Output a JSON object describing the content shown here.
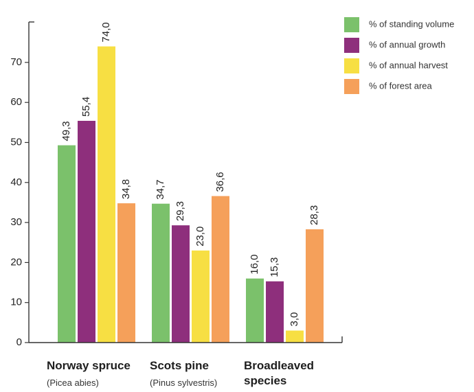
{
  "chart_data": {
    "type": "bar",
    "categories": [
      {
        "name": "Norway spruce",
        "subtitle": "(Picea abies)",
        "name_lines": [
          "Norway spruce"
        ]
      },
      {
        "name": "Scots pine",
        "subtitle": "(Pinus sylvestris)",
        "name_lines": [
          "Scots pine"
        ]
      },
      {
        "name": "Broadleaved species",
        "subtitle": "",
        "name_lines": [
          "Broadleaved",
          "species"
        ]
      }
    ],
    "series": [
      {
        "name": "% of standing volume",
        "color": "#7bc16b",
        "values": [
          49.3,
          34.7,
          16.0
        ],
        "labels": [
          "49,3",
          "34,7",
          "16,0"
        ]
      },
      {
        "name": "% of annual growth",
        "color": "#8e2f7c",
        "values": [
          55.4,
          29.3,
          15.3
        ],
        "labels": [
          "55,4",
          "29,3",
          "15,3"
        ]
      },
      {
        "name": "% of annual harvest",
        "color": "#f7df43",
        "values": [
          74.0,
          23.0,
          3.0
        ],
        "labels": [
          "74,0",
          "23,0",
          "3,0"
        ]
      },
      {
        "name": "% of forest area",
        "color": "#f5a05a",
        "values": [
          34.8,
          36.6,
          28.3
        ],
        "labels": [
          "34,8",
          "36,6",
          "28,3"
        ]
      }
    ],
    "yticks": [
      0,
      10,
      20,
      30,
      40,
      50,
      60,
      70
    ],
    "ylim": [
      0,
      80
    ],
    "grid": false,
    "legend_position": "top-right",
    "title": "",
    "xlabel": "",
    "ylabel": ""
  }
}
